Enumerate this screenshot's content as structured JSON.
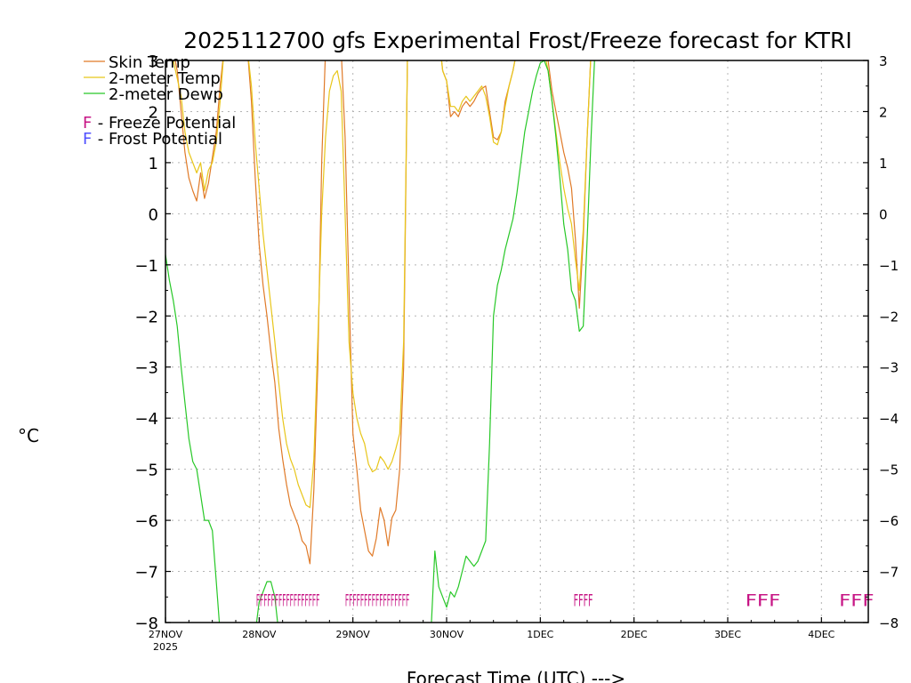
{
  "chart_data": {
    "type": "line",
    "title": "2025112700 gfs Experimental Frost/Freeze forecast for KTRI",
    "ylabel": "°C",
    "xlabel": "Forecast Time (UTC) --->",
    "ylim": [
      -8,
      3
    ],
    "xlim": [
      0,
      180
    ],
    "yticks": [
      -8,
      -7,
      -6,
      -5,
      -4,
      -3,
      -2,
      -1,
      0,
      1,
      2,
      3
    ],
    "xticks": [
      {
        "x": 0,
        "label": "27NOV",
        "sublabel": "2025"
      },
      {
        "x": 24,
        "label": "28NOV"
      },
      {
        "x": 48,
        "label": "29NOV"
      },
      {
        "x": 72,
        "label": "30NOV"
      },
      {
        "x": 96,
        "label": "1DEC"
      },
      {
        "x": 120,
        "label": "2DEC"
      },
      {
        "x": 144,
        "label": "3DEC"
      },
      {
        "x": 168,
        "label": "4DEC"
      }
    ],
    "legend": [
      {
        "name": "Skin Temp",
        "color": "#e07a28"
      },
      {
        "name": "2-meter Temp",
        "color": "#e8c61a"
      },
      {
        "name": "2-meter Dewp",
        "color": "#28c828"
      }
    ],
    "symbol_legend": [
      {
        "symbol": "F",
        "label": " - Freeze Potential",
        "color": "#c71585"
      },
      {
        "symbol": "F",
        "label": " - Frost Potential",
        "color": "#5050ff"
      }
    ],
    "series": [
      {
        "name": "Skin Temp",
        "color": "#e07a28",
        "points": [
          [
            2,
            3.2
          ],
          [
            3,
            2.8
          ],
          [
            4,
            2
          ],
          [
            5,
            1.2
          ],
          [
            6,
            0.7
          ],
          [
            7,
            0.45
          ],
          [
            8,
            0.25
          ],
          [
            9,
            0.8
          ],
          [
            10,
            0.3
          ],
          [
            11,
            0.6
          ],
          [
            12,
            1.1
          ],
          [
            13,
            1.6
          ],
          [
            14,
            2.5
          ],
          [
            15,
            3.2
          ],
          [
            20,
            3.5
          ],
          [
            21,
            3.2
          ],
          [
            22,
            2.2
          ],
          [
            23,
            0.7
          ],
          [
            24,
            -0.6
          ],
          [
            25,
            -1.4
          ],
          [
            26,
            -2
          ],
          [
            27,
            -2.7
          ],
          [
            28,
            -3.3
          ],
          [
            29,
            -4.2
          ],
          [
            30,
            -4.8
          ],
          [
            31,
            -5.3
          ],
          [
            32,
            -5.7
          ],
          [
            33,
            -5.9
          ],
          [
            34,
            -6.1
          ],
          [
            35,
            -6.4
          ],
          [
            36,
            -6.5
          ],
          [
            37,
            -6.85
          ],
          [
            38,
            -5.4
          ],
          [
            39,
            -3
          ],
          [
            40,
            1
          ],
          [
            41,
            3.2
          ],
          [
            44,
            3.5
          ],
          [
            45,
            3.2
          ],
          [
            46,
            1.5
          ],
          [
            47,
            -1.5
          ],
          [
            48,
            -4.3
          ],
          [
            49,
            -5
          ],
          [
            50,
            -5.8
          ],
          [
            51,
            -6.2
          ],
          [
            52,
            -6.6
          ],
          [
            53,
            -6.7
          ],
          [
            54,
            -6.35
          ],
          [
            55,
            -5.75
          ],
          [
            56,
            -6
          ],
          [
            57,
            -6.5
          ],
          [
            58,
            -5.95
          ],
          [
            59,
            -5.8
          ],
          [
            60,
            -5
          ],
          [
            61,
            -3
          ],
          [
            62,
            3.2
          ],
          [
            70,
            3.5
          ],
          [
            71,
            2.8
          ],
          [
            72,
            2.6
          ],
          [
            73,
            1.9
          ],
          [
            74,
            2.0
          ],
          [
            75,
            1.9
          ],
          [
            76,
            2.1
          ],
          [
            77,
            2.2
          ],
          [
            78,
            2.1
          ],
          [
            79,
            2.2
          ],
          [
            80,
            2.35
          ],
          [
            81,
            2.45
          ],
          [
            82,
            2.5
          ],
          [
            83,
            2.0
          ],
          [
            84,
            1.5
          ],
          [
            85,
            1.45
          ],
          [
            86,
            1.6
          ],
          [
            87,
            2.2
          ],
          [
            88,
            2.5
          ],
          [
            89,
            2.8
          ],
          [
            90,
            3.2
          ],
          [
            96,
            3.5
          ],
          [
            97,
            3.2
          ],
          [
            98,
            3
          ],
          [
            99,
            2.4
          ],
          [
            100,
            2.0
          ],
          [
            101,
            1.6
          ],
          [
            102,
            1.2
          ],
          [
            103,
            0.9
          ],
          [
            104,
            0.5
          ],
          [
            105,
            -0.5
          ],
          [
            106,
            -1.85
          ],
          [
            107,
            -0.5
          ],
          [
            108,
            1.5
          ],
          [
            109,
            3.2
          ]
        ]
      },
      {
        "name": "2-meter Temp",
        "color": "#e8c61a",
        "points": [
          [
            1,
            3.2
          ],
          [
            2,
            3
          ],
          [
            4,
            2.3
          ],
          [
            5,
            1.6
          ],
          [
            6,
            1.2
          ],
          [
            7,
            1.0
          ],
          [
            8,
            0.8
          ],
          [
            9,
            1.0
          ],
          [
            10,
            0.45
          ],
          [
            11,
            0.85
          ],
          [
            12,
            1.0
          ],
          [
            13,
            1.4
          ],
          [
            14,
            2.2
          ],
          [
            15,
            3.2
          ],
          [
            20,
            3.5
          ],
          [
            21,
            3.2
          ],
          [
            22,
            2.5
          ],
          [
            23,
            1.4
          ],
          [
            24,
            0.5
          ],
          [
            25,
            -0.4
          ],
          [
            26,
            -1.1
          ],
          [
            27,
            -1.8
          ],
          [
            28,
            -2.5
          ],
          [
            29,
            -3.3
          ],
          [
            30,
            -4.0
          ],
          [
            31,
            -4.5
          ],
          [
            32,
            -4.8
          ],
          [
            33,
            -5.0
          ],
          [
            34,
            -5.3
          ],
          [
            35,
            -5.5
          ],
          [
            36,
            -5.7
          ],
          [
            37,
            -5.75
          ],
          [
            38,
            -4.8
          ],
          [
            39,
            -2.5
          ],
          [
            40,
            0
          ],
          [
            41,
            1.5
          ],
          [
            42,
            2.4
          ],
          [
            43,
            2.7
          ],
          [
            44,
            2.8
          ],
          [
            45,
            2.4
          ],
          [
            46,
            0
          ],
          [
            47,
            -2.5
          ],
          [
            48,
            -3.5
          ],
          [
            49,
            -4
          ],
          [
            50,
            -4.3
          ],
          [
            51,
            -4.5
          ],
          [
            52,
            -4.9
          ],
          [
            53,
            -5.05
          ],
          [
            54,
            -5.0
          ],
          [
            55,
            -4.75
          ],
          [
            56,
            -4.85
          ],
          [
            57,
            -5.0
          ],
          [
            58,
            -4.85
          ],
          [
            59,
            -4.6
          ],
          [
            60,
            -4.3
          ],
          [
            61,
            -2.5
          ],
          [
            62,
            3.2
          ],
          [
            70,
            3.5
          ],
          [
            71,
            2.8
          ],
          [
            72,
            2.6
          ],
          [
            73,
            2.1
          ],
          [
            74,
            2.1
          ],
          [
            75,
            2.0
          ],
          [
            76,
            2.2
          ],
          [
            77,
            2.3
          ],
          [
            78,
            2.2
          ],
          [
            79,
            2.3
          ],
          [
            80,
            2.4
          ],
          [
            81,
            2.5
          ],
          [
            82,
            2.3
          ],
          [
            83,
            1.9
          ],
          [
            84,
            1.4
          ],
          [
            85,
            1.35
          ],
          [
            86,
            1.6
          ],
          [
            87,
            2.1
          ],
          [
            88,
            2.5
          ],
          [
            89,
            2.8
          ],
          [
            90,
            3.2
          ],
          [
            96,
            3.5
          ],
          [
            97,
            3.2
          ],
          [
            98,
            2.8
          ],
          [
            99,
            2.2
          ],
          [
            100,
            1.6
          ],
          [
            101,
            1.0
          ],
          [
            102,
            0.5
          ],
          [
            103,
            0.1
          ],
          [
            104,
            -0.2
          ],
          [
            105,
            -0.9
          ],
          [
            106,
            -1.5
          ],
          [
            107,
            -0.3
          ],
          [
            108,
            1.5
          ],
          [
            109,
            3.2
          ]
        ]
      },
      {
        "name": "2-meter Dewp",
        "color": "#28c828",
        "points": [
          [
            0,
            -0.8
          ],
          [
            1,
            -1.3
          ],
          [
            2,
            -1.7
          ],
          [
            3,
            -2.2
          ],
          [
            4,
            -3.0
          ],
          [
            5,
            -3.7
          ],
          [
            6,
            -4.4
          ],
          [
            7,
            -4.85
          ],
          [
            8,
            -5.0
          ],
          [
            9,
            -5.5
          ],
          [
            10,
            -6.0
          ],
          [
            11,
            -6.0
          ],
          [
            12,
            -6.2
          ],
          [
            13,
            -7.2
          ],
          [
            14,
            -8.2
          ],
          [
            23,
            -8.2
          ],
          [
            24,
            -7.6
          ],
          [
            25,
            -7.4
          ],
          [
            26,
            -7.2
          ],
          [
            27,
            -7.2
          ],
          [
            28,
            -7.5
          ],
          [
            29,
            -8.2
          ],
          [
            68,
            -8.2
          ],
          [
            69,
            -6.6
          ],
          [
            70,
            -7.3
          ],
          [
            71,
            -7.5
          ],
          [
            72,
            -7.7
          ],
          [
            73,
            -7.4
          ],
          [
            74,
            -7.5
          ],
          [
            75,
            -7.3
          ],
          [
            76,
            -7.0
          ],
          [
            77,
            -6.7
          ],
          [
            78,
            -6.8
          ],
          [
            79,
            -6.9
          ],
          [
            80,
            -6.8
          ],
          [
            81,
            -6.6
          ],
          [
            82,
            -6.4
          ],
          [
            83,
            -4.5
          ],
          [
            84,
            -2.0
          ],
          [
            85,
            -1.4
          ],
          [
            86,
            -1.1
          ],
          [
            87,
            -0.7
          ],
          [
            88,
            -0.4
          ],
          [
            89,
            -0.1
          ],
          [
            90,
            0.4
          ],
          [
            91,
            1.0
          ],
          [
            92,
            1.6
          ],
          [
            93,
            2.0
          ],
          [
            94,
            2.4
          ],
          [
            95,
            2.7
          ],
          [
            96,
            2.95
          ],
          [
            97,
            3.0
          ],
          [
            98,
            2.8
          ],
          [
            99,
            2.2
          ],
          [
            100,
            1.5
          ],
          [
            101,
            0.7
          ],
          [
            102,
            -0.2
          ],
          [
            103,
            -0.7
          ],
          [
            104,
            -1.5
          ],
          [
            105,
            -1.7
          ],
          [
            106,
            -2.3
          ],
          [
            107,
            -2.2
          ],
          [
            108,
            -0.5
          ],
          [
            109,
            1.5
          ],
          [
            110,
            3.2
          ]
        ]
      }
    ],
    "freeze_markers": [
      {
        "x_start": 23.2,
        "x_end": 39.5,
        "text": "FFFFFFFFFFFFFFFFF"
      },
      {
        "x_start": 46.0,
        "x_end": 62.5,
        "text": "FFFFFFFFFFFFFFFFF"
      },
      {
        "x_start": 104.5,
        "x_end": 109.5,
        "text": "FFFF"
      },
      {
        "x_start": 148.5,
        "x_end": 157.5,
        "text": "FFF"
      },
      {
        "x_start": 172.5,
        "x_end": 181.5,
        "text": "FFF"
      }
    ]
  }
}
